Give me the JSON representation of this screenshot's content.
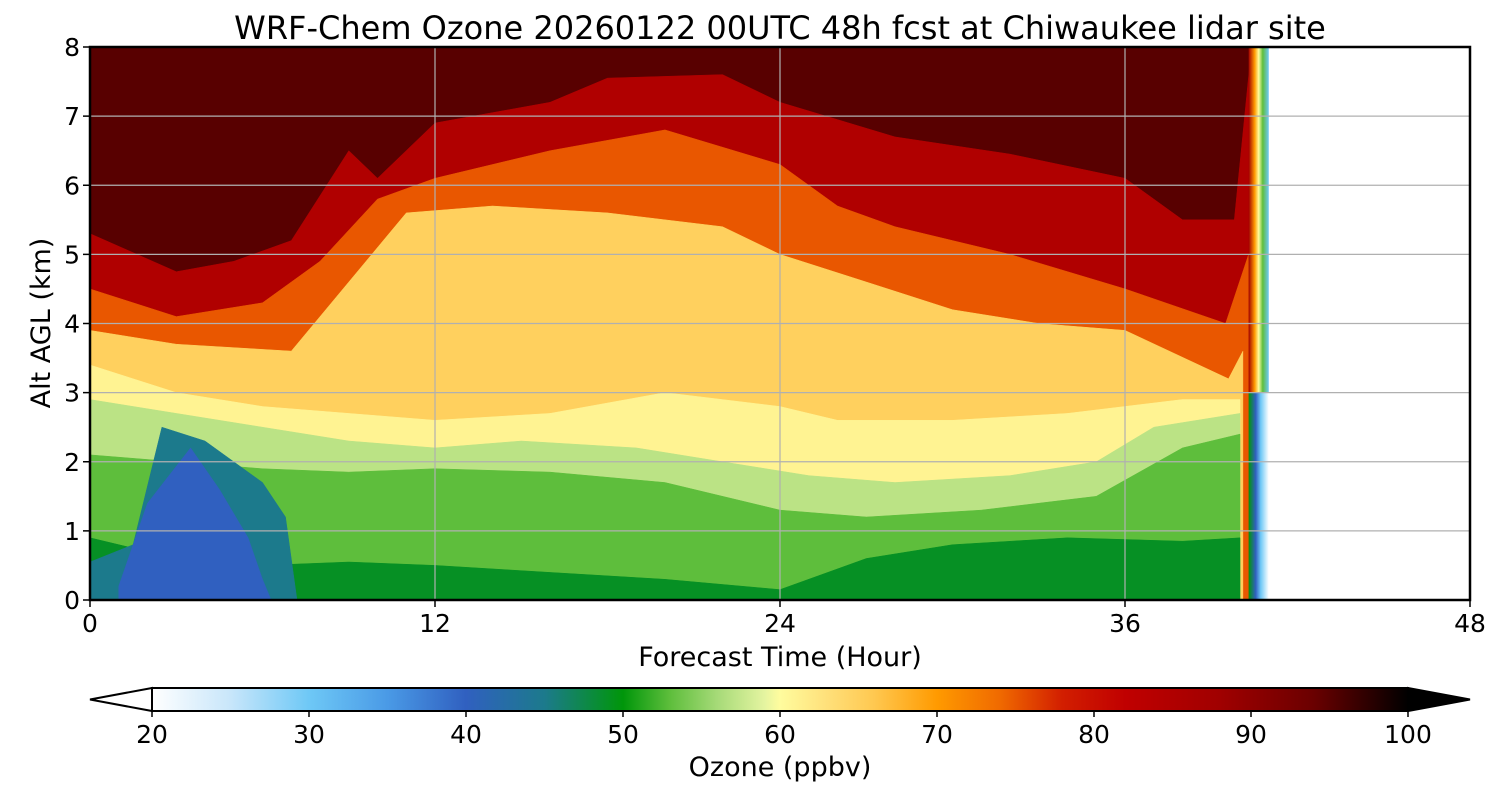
{
  "chart_data": {
    "type": "heatmap",
    "title": "WRF-Chem Ozone  20260122 00UTC 48h fcst at Chiwaukee lidar site",
    "xlabel": "Forecast Time (Hour)",
    "ylabel": "Alt AGL (km)",
    "xlim": [
      0,
      48
    ],
    "ylim": [
      0,
      8
    ],
    "x_ticks": [
      0,
      12,
      24,
      36,
      48
    ],
    "y_ticks": [
      0,
      1,
      2,
      3,
      4,
      5,
      6,
      7,
      8
    ],
    "grid": true,
    "forecast_data_end_hour": 40.5,
    "colorbar": {
      "label": "Ozone  (ppbv)",
      "range": [
        20,
        100
      ],
      "extend": "both",
      "ticks": [
        20,
        30,
        40,
        50,
        60,
        70,
        80,
        90,
        100
      ],
      "colors": [
        {
          "v": 20,
          "c": "#ffffff"
        },
        {
          "v": 25,
          "c": "#c8e6fa"
        },
        {
          "v": 30,
          "c": "#6ec8f6"
        },
        {
          "v": 35,
          "c": "#4a9ae6"
        },
        {
          "v": 40,
          "c": "#3060c0"
        },
        {
          "v": 45,
          "c": "#1c7a8c"
        },
        {
          "v": 50,
          "c": "#00960a"
        },
        {
          "v": 53,
          "c": "#5ebe3c"
        },
        {
          "v": 56,
          "c": "#a6da78"
        },
        {
          "v": 59,
          "c": "#e4f4a0"
        },
        {
          "v": 60,
          "c": "#fffc9e"
        },
        {
          "v": 63,
          "c": "#ffe07a"
        },
        {
          "v": 66,
          "c": "#ffc850"
        },
        {
          "v": 70,
          "c": "#ff9a00"
        },
        {
          "v": 74,
          "c": "#f06a00"
        },
        {
          "v": 78,
          "c": "#d21e00"
        },
        {
          "v": 82,
          "c": "#c00000"
        },
        {
          "v": 88,
          "c": "#a00000"
        },
        {
          "v": 94,
          "c": "#6a0000"
        },
        {
          "v": 100,
          "c": "#000000"
        }
      ]
    },
    "contour_layers": [
      {
        "value": 95,
        "top": [
          [
            0,
            8
          ],
          [
            48,
            8
          ]
        ]
      },
      {
        "value": 85,
        "top": [
          [
            0,
            5.3
          ],
          [
            3,
            4.75
          ],
          [
            5,
            4.9
          ],
          [
            7,
            5.2
          ],
          [
            9,
            6.5
          ],
          [
            10,
            6.1
          ],
          [
            12,
            6.9
          ],
          [
            16,
            7.2
          ],
          [
            18,
            7.55
          ],
          [
            22,
            7.6
          ],
          [
            24,
            7.2
          ],
          [
            28,
            6.7
          ],
          [
            32,
            6.45
          ],
          [
            36,
            6.1
          ],
          [
            38,
            5.5
          ],
          [
            39.8,
            5.5
          ],
          [
            40.4,
            8
          ]
        ]
      },
      {
        "value": 75,
        "top": [
          [
            0,
            4.5
          ],
          [
            3,
            4.1
          ],
          [
            6,
            4.3
          ],
          [
            8,
            4.9
          ],
          [
            10,
            5.8
          ],
          [
            12,
            6.1
          ],
          [
            16,
            6.5
          ],
          [
            20,
            6.8
          ],
          [
            24,
            6.3
          ],
          [
            26,
            5.7
          ],
          [
            28,
            5.4
          ],
          [
            32,
            5.0
          ],
          [
            36,
            4.5
          ],
          [
            39.5,
            4.0
          ],
          [
            40.3,
            5.0
          ]
        ]
      },
      {
        "value": 65,
        "top": [
          [
            0,
            3.9
          ],
          [
            3,
            3.7
          ],
          [
            7,
            3.6
          ],
          [
            9,
            4.6
          ],
          [
            11,
            5.6
          ],
          [
            14,
            5.7
          ],
          [
            18,
            5.6
          ],
          [
            22,
            5.4
          ],
          [
            24,
            5.0
          ],
          [
            27,
            4.6
          ],
          [
            30,
            4.2
          ],
          [
            33,
            4.0
          ],
          [
            36,
            3.9
          ],
          [
            39.6,
            3.2
          ],
          [
            40.1,
            3.6
          ]
        ]
      },
      {
        "value": 61,
        "top": [
          [
            0,
            3.4
          ],
          [
            3,
            3.0
          ],
          [
            6,
            2.8
          ],
          [
            9,
            2.7
          ],
          [
            12,
            2.6
          ],
          [
            16,
            2.7
          ],
          [
            20,
            3.0
          ],
          [
            24,
            2.8
          ],
          [
            26,
            2.6
          ],
          [
            30,
            2.6
          ],
          [
            34,
            2.7
          ],
          [
            38,
            2.9
          ],
          [
            40,
            2.9
          ]
        ]
      },
      {
        "value": 57,
        "top": [
          [
            0,
            2.9
          ],
          [
            3,
            2.7
          ],
          [
            6,
            2.5
          ],
          [
            9,
            2.3
          ],
          [
            12,
            2.2
          ],
          [
            15,
            2.3
          ],
          [
            19,
            2.2
          ],
          [
            22,
            2.0
          ],
          [
            25,
            1.8
          ],
          [
            28,
            1.7
          ],
          [
            32,
            1.8
          ],
          [
            35,
            2.0
          ],
          [
            37,
            2.5
          ],
          [
            40,
            2.7
          ]
        ]
      },
      {
        "value": 53,
        "top": [
          [
            0,
            2.1
          ],
          [
            3,
            2.0
          ],
          [
            6,
            1.9
          ],
          [
            9,
            1.85
          ],
          [
            12,
            1.9
          ],
          [
            16,
            1.85
          ],
          [
            20,
            1.7
          ],
          [
            24,
            1.3
          ],
          [
            27,
            1.2
          ],
          [
            31,
            1.3
          ],
          [
            35,
            1.5
          ],
          [
            38,
            2.2
          ],
          [
            40,
            2.4
          ]
        ]
      },
      {
        "value": 49,
        "top": [
          [
            0,
            0.9
          ],
          [
            3,
            0.6
          ],
          [
            6,
            0.5
          ],
          [
            9,
            0.55
          ],
          [
            12,
            0.5
          ],
          [
            16,
            0.4
          ],
          [
            20,
            0.3
          ],
          [
            24,
            0.15
          ],
          [
            27,
            0.6
          ],
          [
            30,
            0.8
          ],
          [
            34,
            0.9
          ],
          [
            38,
            0.85
          ],
          [
            40,
            0.9
          ]
        ]
      },
      {
        "value": 45,
        "top": [
          [
            0,
            0.55
          ],
          [
            1.5,
            0.8
          ],
          [
            2.5,
            2.5
          ],
          [
            4,
            2.3
          ],
          [
            6,
            1.7
          ],
          [
            6.8,
            1.2
          ],
          [
            7.2,
            0
          ]
        ]
      },
      {
        "value": 40,
        "top": [
          [
            1,
            0.2
          ],
          [
            2,
            1.4
          ],
          [
            3.5,
            2.2
          ],
          [
            4.5,
            1.6
          ],
          [
            5.5,
            0.9
          ],
          [
            6,
            0.3
          ],
          [
            6.3,
            0
          ]
        ]
      }
    ]
  }
}
